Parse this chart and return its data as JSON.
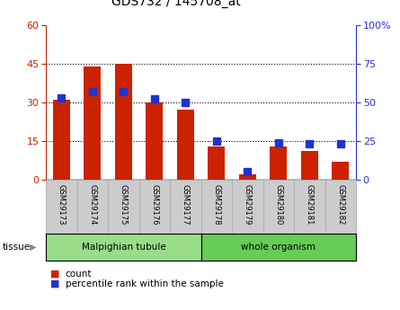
{
  "title": "GDS732 / 145708_at",
  "samples": [
    "GSM29173",
    "GSM29174",
    "GSM29175",
    "GSM29176",
    "GSM29177",
    "GSM29178",
    "GSM29179",
    "GSM29180",
    "GSM29181",
    "GSM29182"
  ],
  "counts": [
    31,
    44,
    45,
    30,
    27,
    13,
    2,
    13,
    11,
    7
  ],
  "percentiles": [
    53,
    57,
    57,
    52,
    50,
    25,
    5,
    24,
    23,
    23
  ],
  "tissue_groups": [
    {
      "label": "Malpighian tubule",
      "start": 0,
      "end": 5,
      "color": "#99dd88"
    },
    {
      "label": "whole organism",
      "start": 5,
      "end": 10,
      "color": "#66cc55"
    }
  ],
  "bar_color_count": "#cc2200",
  "bar_color_pct": "#2233cc",
  "ylim_left": [
    0,
    60
  ],
  "ylim_right": [
    0,
    100
  ],
  "yticks_left": [
    0,
    15,
    30,
    45,
    60
  ],
  "yticks_right": [
    0,
    25,
    50,
    75,
    100
  ],
  "ytick_labels_right": [
    "0",
    "25",
    "50",
    "75",
    "100%"
  ],
  "bg_plot": "white",
  "bg_xlabel": "#cccccc",
  "legend_count_label": "count",
  "legend_pct_label": "percentile rank within the sample",
  "tissue_label": "tissue",
  "bar_width": 0.55,
  "pct_marker_size": 6
}
